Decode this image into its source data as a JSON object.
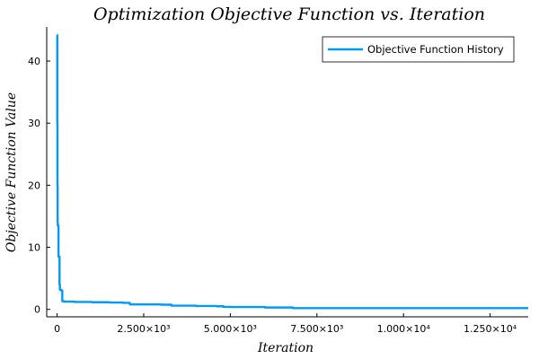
{
  "chart_data": {
    "type": "line",
    "title": "Optimization Objective Function vs. Iteration",
    "xlabel": "Iteration",
    "ylabel": "Objective Function Value",
    "xlim": [
      -300,
      13600
    ],
    "ylim": [
      -1.2,
      45.5
    ],
    "x_ticks": [
      {
        "value": 0,
        "label": "0"
      },
      {
        "value": 2500,
        "label": "2.500×10³"
      },
      {
        "value": 5000,
        "label": "5.000×10³"
      },
      {
        "value": 7500,
        "label": "7.500×10³"
      },
      {
        "value": 10000,
        "label": "1.000×10⁴"
      },
      {
        "value": 12500,
        "label": "1.250×10⁴"
      }
    ],
    "y_ticks": [
      {
        "value": 0,
        "label": "0"
      },
      {
        "value": 10,
        "label": "10"
      },
      {
        "value": 20,
        "label": "20"
      },
      {
        "value": 30,
        "label": "30"
      },
      {
        "value": 40,
        "label": "40"
      }
    ],
    "grid": false,
    "legend_position": "top-right",
    "series": [
      {
        "name": "Objective Function History",
        "color": "#009AFA",
        "x": [
          0,
          5,
          10,
          15,
          20,
          30,
          40,
          50,
          60,
          70,
          80,
          90,
          100,
          110,
          130,
          150,
          200,
          300,
          500,
          1000,
          1500,
          1900,
          2100,
          2500,
          3000,
          3300,
          3500,
          4000,
          4600,
          4800,
          5000,
          6000,
          6800,
          7000,
          8000,
          10000,
          12000,
          13600
        ],
        "y": [
          44.2,
          30,
          20,
          14,
          13.5,
          13.5,
          8.5,
          8.5,
          8.5,
          4.0,
          3.2,
          3.2,
          3.1,
          3.1,
          3.0,
          1.3,
          1.25,
          1.25,
          1.2,
          1.15,
          1.1,
          1.05,
          0.8,
          0.8,
          0.75,
          0.6,
          0.6,
          0.55,
          0.5,
          0.4,
          0.38,
          0.3,
          0.2,
          0.2,
          0.2,
          0.2,
          0.2,
          0.2
        ]
      }
    ]
  }
}
